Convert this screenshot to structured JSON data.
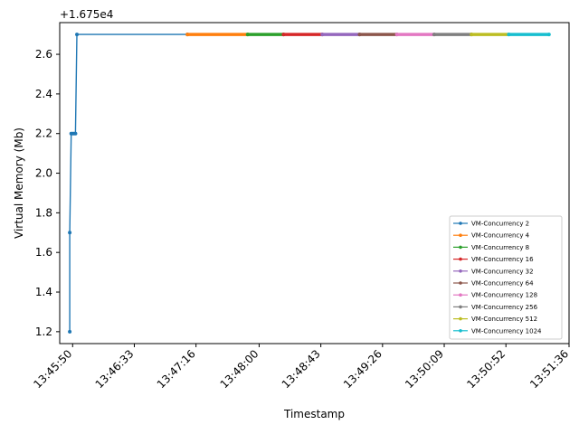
{
  "chart_data": {
    "type": "line",
    "title": "",
    "xlabel": "Timestamp",
    "ylabel": "Virtual Memory (Mb)",
    "y_offset_label": "+1.675e4",
    "x_ticks": [
      "13:45:50",
      "13:46:33",
      "13:47:16",
      "13:48:00",
      "13:48:43",
      "13:49:26",
      "13:50:09",
      "13:50:52",
      "13:51:36"
    ],
    "y_ticks": [
      "1.2",
      "1.4",
      "1.6",
      "1.8",
      "2.0",
      "2.2",
      "2.4",
      "2.6"
    ],
    "xlim": [
      "13:45:41",
      "13:51:36"
    ],
    "ylim": [
      1.14,
      2.76
    ],
    "legend_position": "lower-right",
    "grid": false,
    "series": [
      {
        "name": "VM-Concurrency 2",
        "color": "#1f77b4",
        "points": [
          [
            "13:45:48",
            1.2
          ],
          [
            "13:45:48",
            1.7
          ],
          [
            "13:45:49",
            2.2
          ],
          [
            "13:45:50",
            2.2
          ],
          [
            "13:45:51",
            2.2
          ],
          [
            "13:45:52",
            2.2
          ],
          [
            "13:45:53",
            2.7
          ],
          [
            "13:47:10",
            2.7
          ]
        ]
      },
      {
        "name": "VM-Concurrency 4",
        "color": "#ff7f0e",
        "points": [
          [
            "13:47:10",
            2.7
          ],
          [
            "13:47:52",
            2.7
          ]
        ]
      },
      {
        "name": "VM-Concurrency 8",
        "color": "#2ca02c",
        "points": [
          [
            "13:47:52",
            2.7
          ],
          [
            "13:48:17",
            2.7
          ]
        ]
      },
      {
        "name": "VM-Concurrency 16",
        "color": "#d62728",
        "points": [
          [
            "13:48:17",
            2.7
          ],
          [
            "13:48:44",
            2.7
          ]
        ]
      },
      {
        "name": "VM-Concurrency 32",
        "color": "#9467bd",
        "points": [
          [
            "13:48:44",
            2.7
          ],
          [
            "13:49:10",
            2.7
          ]
        ]
      },
      {
        "name": "VM-Concurrency 64",
        "color": "#8c564b",
        "points": [
          [
            "13:49:10",
            2.7
          ],
          [
            "13:49:36",
            2.7
          ]
        ]
      },
      {
        "name": "VM-Concurrency 128",
        "color": "#e377c2",
        "points": [
          [
            "13:49:36",
            2.7
          ],
          [
            "13:50:02",
            2.7
          ]
        ]
      },
      {
        "name": "VM-Concurrency 256",
        "color": "#7f7f7f",
        "points": [
          [
            "13:50:02",
            2.7
          ],
          [
            "13:50:28",
            2.7
          ]
        ]
      },
      {
        "name": "VM-Concurrency 512",
        "color": "#bcbd22",
        "points": [
          [
            "13:50:28",
            2.7
          ],
          [
            "13:50:54",
            2.7
          ]
        ]
      },
      {
        "name": "VM-Concurrency 1024",
        "color": "#17becf",
        "points": [
          [
            "13:50:54",
            2.7
          ],
          [
            "13:51:22",
            2.7
          ]
        ]
      }
    ]
  }
}
